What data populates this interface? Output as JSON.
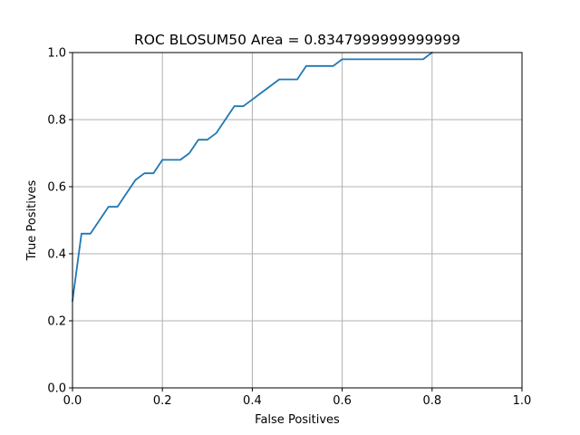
{
  "chart_data": {
    "type": "line",
    "title": "ROC BLOSUM50 Area = 0.8347999999999999",
    "xlabel": "False Positives",
    "ylabel": "True Positives",
    "xlim": [
      0.0,
      1.0
    ],
    "ylim": [
      0.0,
      1.0
    ],
    "x_ticks": [
      0.0,
      0.2,
      0.4,
      0.6,
      0.8,
      1.0
    ],
    "y_ticks": [
      0.0,
      0.2,
      0.4,
      0.6,
      0.8,
      1.0
    ],
    "x_tick_labels": [
      "0.0",
      "0.2",
      "0.4",
      "0.6",
      "0.8",
      "1.0"
    ],
    "y_tick_labels": [
      "0.0",
      "0.2",
      "0.4",
      "0.6",
      "0.8",
      "1.0"
    ],
    "grid": true,
    "legend": "none",
    "colors": {
      "line": "#1f77b4",
      "grid": "#b0b0b0",
      "axes": "#000000"
    },
    "series": [
      {
        "x": [
          0.0,
          0.02,
          0.04,
          0.06,
          0.08,
          0.1,
          0.12,
          0.14,
          0.16,
          0.18,
          0.2,
          0.22,
          0.24,
          0.26,
          0.28,
          0.3,
          0.32,
          0.34,
          0.36,
          0.38,
          0.4,
          0.42,
          0.44,
          0.46,
          0.48,
          0.5,
          0.52,
          0.54,
          0.56,
          0.58,
          0.6,
          0.62,
          0.64,
          0.66,
          0.68,
          0.7,
          0.72,
          0.74,
          0.76,
          0.78,
          0.8
        ],
        "y": [
          0.26,
          0.46,
          0.46,
          0.5,
          0.54,
          0.54,
          0.58,
          0.62,
          0.64,
          0.64,
          0.68,
          0.68,
          0.68,
          0.7,
          0.74,
          0.74,
          0.76,
          0.8,
          0.84,
          0.84,
          0.86,
          0.88,
          0.9,
          0.92,
          0.92,
          0.92,
          0.96,
          0.96,
          0.96,
          0.96,
          0.98,
          0.98,
          0.98,
          0.98,
          0.98,
          0.98,
          0.98,
          0.98,
          0.98,
          0.98,
          1.0
        ]
      }
    ]
  }
}
